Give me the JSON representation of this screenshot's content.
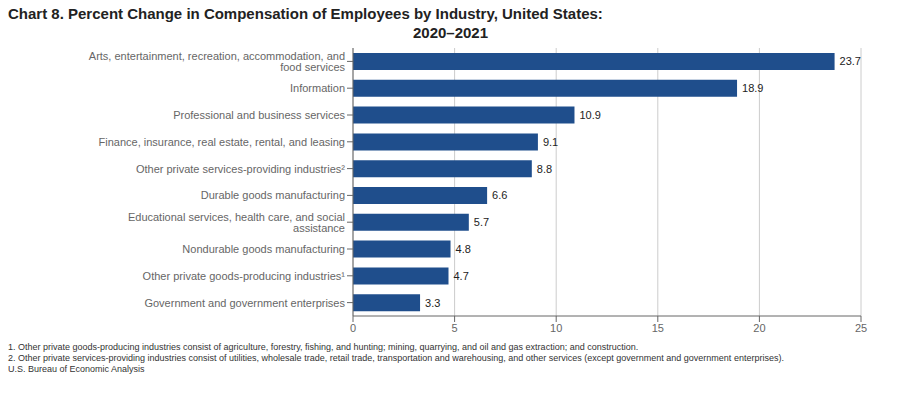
{
  "chart_data": {
    "type": "bar",
    "orientation": "horizontal",
    "title": "Chart 8. Percent Change in Compensation of Employees by Industry, United States:\n2020–2021",
    "categories": [
      "Government and government enterprises",
      "Other private goods-producing industries¹",
      "Nondurable goods manufacturing",
      "Educational services, health care, and social assistance",
      "Durable goods manufacturing",
      "Other private services-providing industries²",
      "Finance, insurance, real estate, rental, and leasing",
      "Professional and business services",
      "Information",
      "Arts, entertainment, recreation, accommodation, and food services"
    ],
    "values": [
      3.3,
      4.7,
      4.8,
      5.7,
      6.6,
      8.8,
      9.1,
      10.9,
      18.9,
      23.7
    ],
    "color": "#1f4e8c",
    "xlim": [
      0,
      25
    ],
    "xticks": [
      0,
      5,
      10,
      15,
      20,
      25
    ],
    "grid": true,
    "data_labels": true,
    "annotations": [
      "1.  Other private goods-producing industries consist of agriculture, forestry, fishing, and hunting; mining, quarrying, and oil and gas extraction; and construction.",
      "2.  Other private services-providing industries consist of utilities, wholesale trade, retail trade, transportation and warehousing, and other services (except government and government enterprises).",
      "U.S. Bureau of Economic Analysis"
    ]
  }
}
